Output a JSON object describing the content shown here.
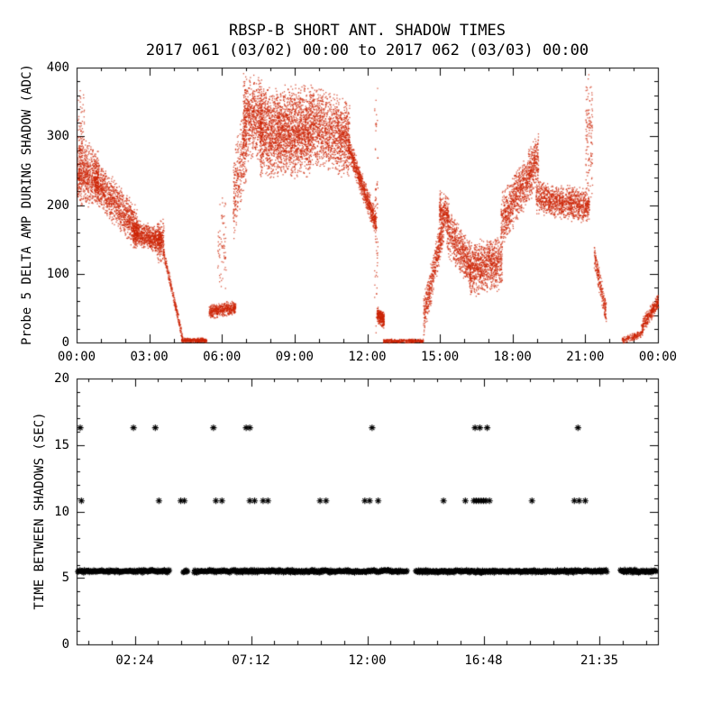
{
  "title": "RBSP-B SHORT ANT. SHADOW TIMES",
  "subtitle": "2017 061 (03/02) 00:00 to 2017 062 (03/03) 00:00",
  "colors": {
    "background": "#ffffff",
    "axis": "#000000",
    "top_points": "#cc2200",
    "bottom_points": "#000000"
  },
  "chart_data": [
    {
      "type": "scatter",
      "panel": "top",
      "title": "RBSP-B SHORT ANT. SHADOW TIMES",
      "subtitle": "2017 061 (03/02) 00:00 to 2017 062 (03/03) 00:00",
      "ylabel": "Probe 5 DELTA AMP DURING SHADOW (ADC)",
      "xlabel": "",
      "xlim": [
        0,
        24
      ],
      "ylim": [
        0,
        400
      ],
      "x_ticks": [
        0,
        3,
        6,
        9,
        12,
        15,
        18,
        21,
        24
      ],
      "x_tick_labels": [
        "00:00",
        "03:00",
        "06:00",
        "09:00",
        "12:00",
        "15:00",
        "18:00",
        "21:00",
        "00:00"
      ],
      "y_ticks": [
        0,
        100,
        200,
        300,
        400
      ],
      "y_tick_labels": [
        "0",
        "100",
        "200",
        "300",
        "400"
      ],
      "marker": "dot",
      "color": "#cc2200",
      "grid": false,
      "point_clusters": [
        {
          "x0": 0.02,
          "x1": 0.3,
          "y0": 300,
          "y1": 300,
          "sy": 95,
          "n": 90
        },
        {
          "x0": 0.02,
          "x1": 0.9,
          "y0": 250,
          "y1": 240,
          "sy": 50,
          "n": 650
        },
        {
          "x0": 0.7,
          "x1": 2.5,
          "y0": 240,
          "y1": 165,
          "sy": 35,
          "n": 1100
        },
        {
          "x0": 2.3,
          "x1": 3.5,
          "y0": 162,
          "y1": 148,
          "sy": 20,
          "n": 750
        },
        {
          "x0": 3.3,
          "x1": 3.6,
          "y0": 150,
          "y1": 150,
          "sy": 35,
          "n": 150
        },
        {
          "x0": 3.55,
          "x1": 4.35,
          "y0": 135,
          "y1": 8,
          "sy": 9,
          "n": 260
        },
        {
          "x0": 4.3,
          "x1": 5.35,
          "y0": 4,
          "y1": 4,
          "sy": 3.5,
          "n": 320
        },
        {
          "x0": 5.45,
          "x1": 6.55,
          "y0": 45,
          "y1": 52,
          "sy": 11,
          "n": 480
        },
        {
          "x0": 5.8,
          "x1": 6.15,
          "y0": 145,
          "y1": 145,
          "sy": 80,
          "n": 70
        },
        {
          "x0": 6.45,
          "x1": 7.0,
          "y0": 210,
          "y1": 300,
          "sy": 70,
          "n": 350
        },
        {
          "x0": 6.85,
          "x1": 7.65,
          "y0": 330,
          "y1": 325,
          "sy": 65,
          "n": 650
        },
        {
          "x0": 7.55,
          "x1": 9.65,
          "y0": 305,
          "y1": 310,
          "sy": 70,
          "n": 2300
        },
        {
          "x0": 9.65,
          "x1": 11.25,
          "y0": 320,
          "y1": 295,
          "sy": 60,
          "n": 1300
        },
        {
          "x0": 11.2,
          "x1": 12.35,
          "y0": 285,
          "y1": 172,
          "sy": 20,
          "n": 750
        },
        {
          "x0": 12.28,
          "x1": 12.42,
          "y0": 200,
          "y1": 200,
          "sy": 195,
          "n": 70
        },
        {
          "x0": 12.38,
          "x1": 12.68,
          "y0": 42,
          "y1": 32,
          "sy": 13,
          "n": 260
        },
        {
          "x0": 12.65,
          "x1": 14.3,
          "y0": 3,
          "y1": 3,
          "sy": 3,
          "n": 330
        },
        {
          "x0": 14.3,
          "x1": 15.15,
          "y0": 35,
          "y1": 175,
          "sy": 32,
          "n": 520
        },
        {
          "x0": 14.95,
          "x1": 15.35,
          "y0": 195,
          "y1": 185,
          "sy": 30,
          "n": 230
        },
        {
          "x0": 15.25,
          "x1": 16.25,
          "y0": 165,
          "y1": 112,
          "sy": 38,
          "n": 600
        },
        {
          "x0": 16.2,
          "x1": 17.55,
          "y0": 105,
          "y1": 118,
          "sy": 42,
          "n": 950
        },
        {
          "x0": 17.5,
          "x1": 19.05,
          "y0": 175,
          "y1": 268,
          "sy": 42,
          "n": 1050
        },
        {
          "x0": 18.95,
          "x1": 21.15,
          "y0": 212,
          "y1": 198,
          "sy": 26,
          "n": 1150
        },
        {
          "x0": 21.0,
          "x1": 21.28,
          "y0": 300,
          "y1": 300,
          "sy": 100,
          "n": 130
        },
        {
          "x0": 21.35,
          "x1": 21.85,
          "y0": 125,
          "y1": 42,
          "sy": 20,
          "n": 230
        },
        {
          "x0": 22.5,
          "x1": 23.35,
          "y0": 4,
          "y1": 14,
          "sy": 6,
          "n": 170
        },
        {
          "x0": 23.3,
          "x1": 24.0,
          "y0": 22,
          "y1": 62,
          "sy": 13,
          "n": 320
        }
      ]
    },
    {
      "type": "scatter",
      "panel": "bottom",
      "title": "",
      "ylabel": "TIME BETWEEN SHADOWS (SEC)",
      "xlabel": "",
      "xlim": [
        0,
        24
      ],
      "ylim": [
        0,
        20
      ],
      "x_ticks": [
        2.4,
        7.2,
        12.0,
        16.8,
        21.583
      ],
      "x_tick_labels": [
        "02:24",
        "07:12",
        "12:00",
        "16:48",
        "21:35"
      ],
      "y_ticks": [
        0,
        5,
        10,
        15,
        20
      ],
      "y_tick_labels": [
        "0",
        "5",
        "10",
        "15",
        "20"
      ],
      "marker": "asterisk",
      "color": "#000000",
      "grid": false,
      "dense_band": {
        "y": 5.5,
        "y_jitter": 0.13,
        "x_step": 0.03,
        "segments": [
          [
            0.05,
            3.85
          ],
          [
            4.4,
            4.6
          ],
          [
            4.85,
            13.65
          ],
          [
            14.0,
            21.9
          ],
          [
            22.45,
            23.95
          ]
        ]
      },
      "mid_row": {
        "y": 10.8,
        "x": [
          0.2,
          3.4,
          4.3,
          4.45,
          5.75,
          6.0,
          7.15,
          7.35,
          7.7,
          7.9,
          10.05,
          10.3,
          11.9,
          12.1,
          12.45,
          15.15,
          16.05,
          16.4,
          16.5,
          16.6,
          16.7,
          16.8,
          16.9,
          17.05,
          18.8,
          20.55,
          20.75,
          21.0
        ]
      },
      "top_row": {
        "y": 16.3,
        "x": [
          0.15,
          2.35,
          3.25,
          5.65,
          7.0,
          7.15,
          12.2,
          16.45,
          16.65,
          16.95,
          20.7
        ]
      }
    }
  ]
}
